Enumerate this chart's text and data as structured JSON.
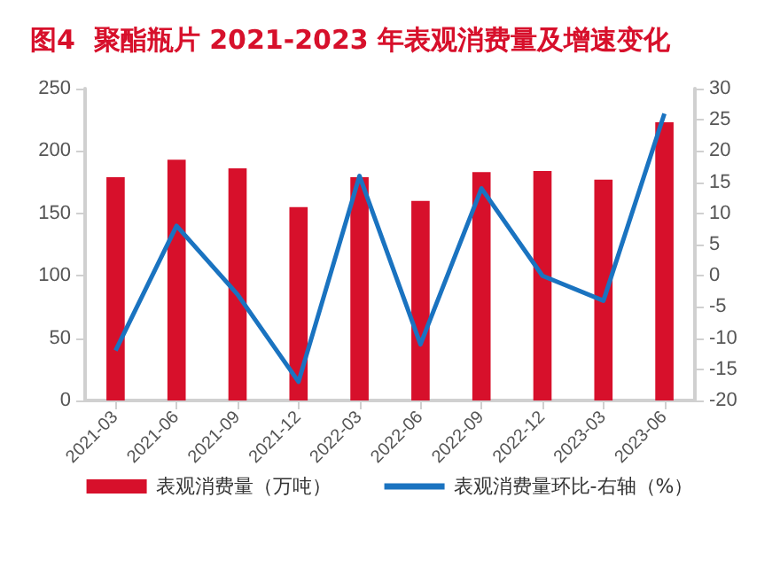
{
  "chart_data": {
    "type": "bar",
    "title": "图4  聚酯瓶片 2021-2023 年表观消费量及增速变化",
    "categories": [
      "2021-03",
      "2021-06",
      "2021-09",
      "2021-12",
      "2022-03",
      "2022-06",
      "2022-09",
      "2022-12",
      "2023-03",
      "2023-06"
    ],
    "series": [
      {
        "name": "表观消费量（万吨）",
        "color": "#d7102b",
        "values": [
          179,
          193,
          186,
          155,
          179,
          160,
          183,
          184,
          177,
          223
        ]
      },
      {
        "name": "表观消费量环比-右轴（%）",
        "type": "line",
        "axis": "y2",
        "color": "#1a73c0",
        "values": [
          -12,
          8,
          -3,
          -17,
          16,
          -11,
          14,
          0,
          -4,
          26
        ]
      }
    ],
    "ylim": [
      0,
      250
    ],
    "yticks": [
      0,
      50,
      100,
      150,
      200,
      250
    ],
    "y2lim": [
      -20,
      30
    ],
    "y2ticks": [
      -20,
      -15,
      -10,
      -5,
      0,
      5,
      10,
      15,
      20,
      25,
      30
    ],
    "legend": "bottom",
    "grid": false,
    "marker": "none"
  }
}
